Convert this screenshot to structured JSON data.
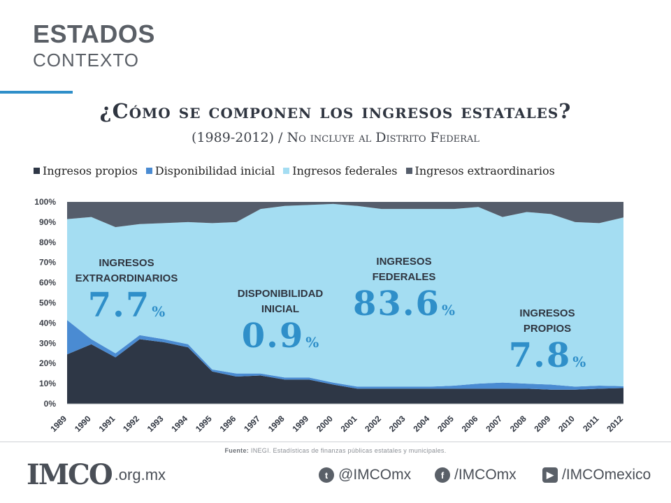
{
  "header": {
    "title": "ESTADOS",
    "subtitle": "CONTEXTO"
  },
  "source": {
    "label": "Fuente:",
    "text": "INEGI. Estadísticas de finanzas públicas estatales y municipales."
  },
  "footer": {
    "logo_text": "IMCO",
    "domain": ".org.mx",
    "twitter": "@IMCOmx",
    "facebook": "/IMCOmx",
    "youtube": "/IMCOmexico"
  },
  "annotations": [
    {
      "label_lines": [
        "INGRESOS",
        "EXTRAORDINARIOS"
      ],
      "value": "7.7",
      "unit": "%"
    },
    {
      "label_lines": [
        "DISPONIBILIDAD",
        "INICIAL"
      ],
      "value": "0.9",
      "unit": "%"
    },
    {
      "label_lines": [
        "INGRESOS",
        "FEDERALES"
      ],
      "value": "83.6",
      "unit": "%"
    },
    {
      "label_lines": [
        "INGRESOS",
        "PROPIOS"
      ],
      "value": "7.8",
      "unit": "%"
    }
  ],
  "chart_data": {
    "type": "area",
    "stacked": true,
    "title": "¿Cómo se componen los ingresos estatales?",
    "subtitle": "(1989-2012) / No incluye al Distrito Federal",
    "categories": [
      "1989",
      "1990",
      "1991",
      "1992",
      "1993",
      "1994",
      "1995",
      "1996",
      "1997",
      "1998",
      "1999",
      "2000",
      "2001",
      "2002",
      "2003",
      "2004",
      "2005",
      "2006",
      "2007",
      "2008",
      "2009",
      "2010",
      "2011",
      "2012"
    ],
    "ylim": [
      0,
      100
    ],
    "yticks": [
      "0%",
      "10%",
      "20%",
      "30%",
      "40%",
      "50%",
      "60%",
      "70%",
      "80%",
      "90%",
      "100%"
    ],
    "legend_position": "top",
    "series": [
      {
        "name": "Ingresos propios",
        "color": "#2e3746",
        "values": [
          24.5,
          29.5,
          23,
          32,
          30.5,
          28,
          16,
          13.5,
          14,
          12,
          12,
          9.5,
          7.5,
          7.5,
          7.5,
          7.5,
          7.5,
          7.5,
          7.5,
          7.5,
          7,
          7,
          7.5,
          7.8
        ]
      },
      {
        "name": "Disponibilidad inicial",
        "color": "#4a8bd2",
        "values": [
          17,
          2.5,
          2,
          2,
          1.5,
          1.5,
          1,
          1.5,
          1,
          1,
          1,
          1,
          1,
          1,
          1,
          1,
          1.5,
          2.5,
          3,
          2.5,
          2.5,
          1.5,
          1.5,
          0.9
        ]
      },
      {
        "name": "Ingresos federales",
        "color": "#a4ddf2",
        "values": [
          50,
          60.5,
          62.5,
          55,
          57.5,
          60.5,
          72.5,
          75,
          81.5,
          85,
          85.5,
          88.5,
          89.5,
          88,
          88,
          88,
          87.5,
          87.5,
          82,
          85,
          84.5,
          81.5,
          80.5,
          83.6
        ]
      },
      {
        "name": "Ingresos extraordinarios",
        "color": "#555d6b",
        "values": [
          8.5,
          7.5,
          12.5,
          11,
          10.5,
          10,
          10.5,
          10,
          3.5,
          2,
          1.5,
          1,
          2,
          3.5,
          3.5,
          3.5,
          3.5,
          2.5,
          7.5,
          5,
          6,
          10,
          10.5,
          7.7
        ]
      }
    ]
  }
}
